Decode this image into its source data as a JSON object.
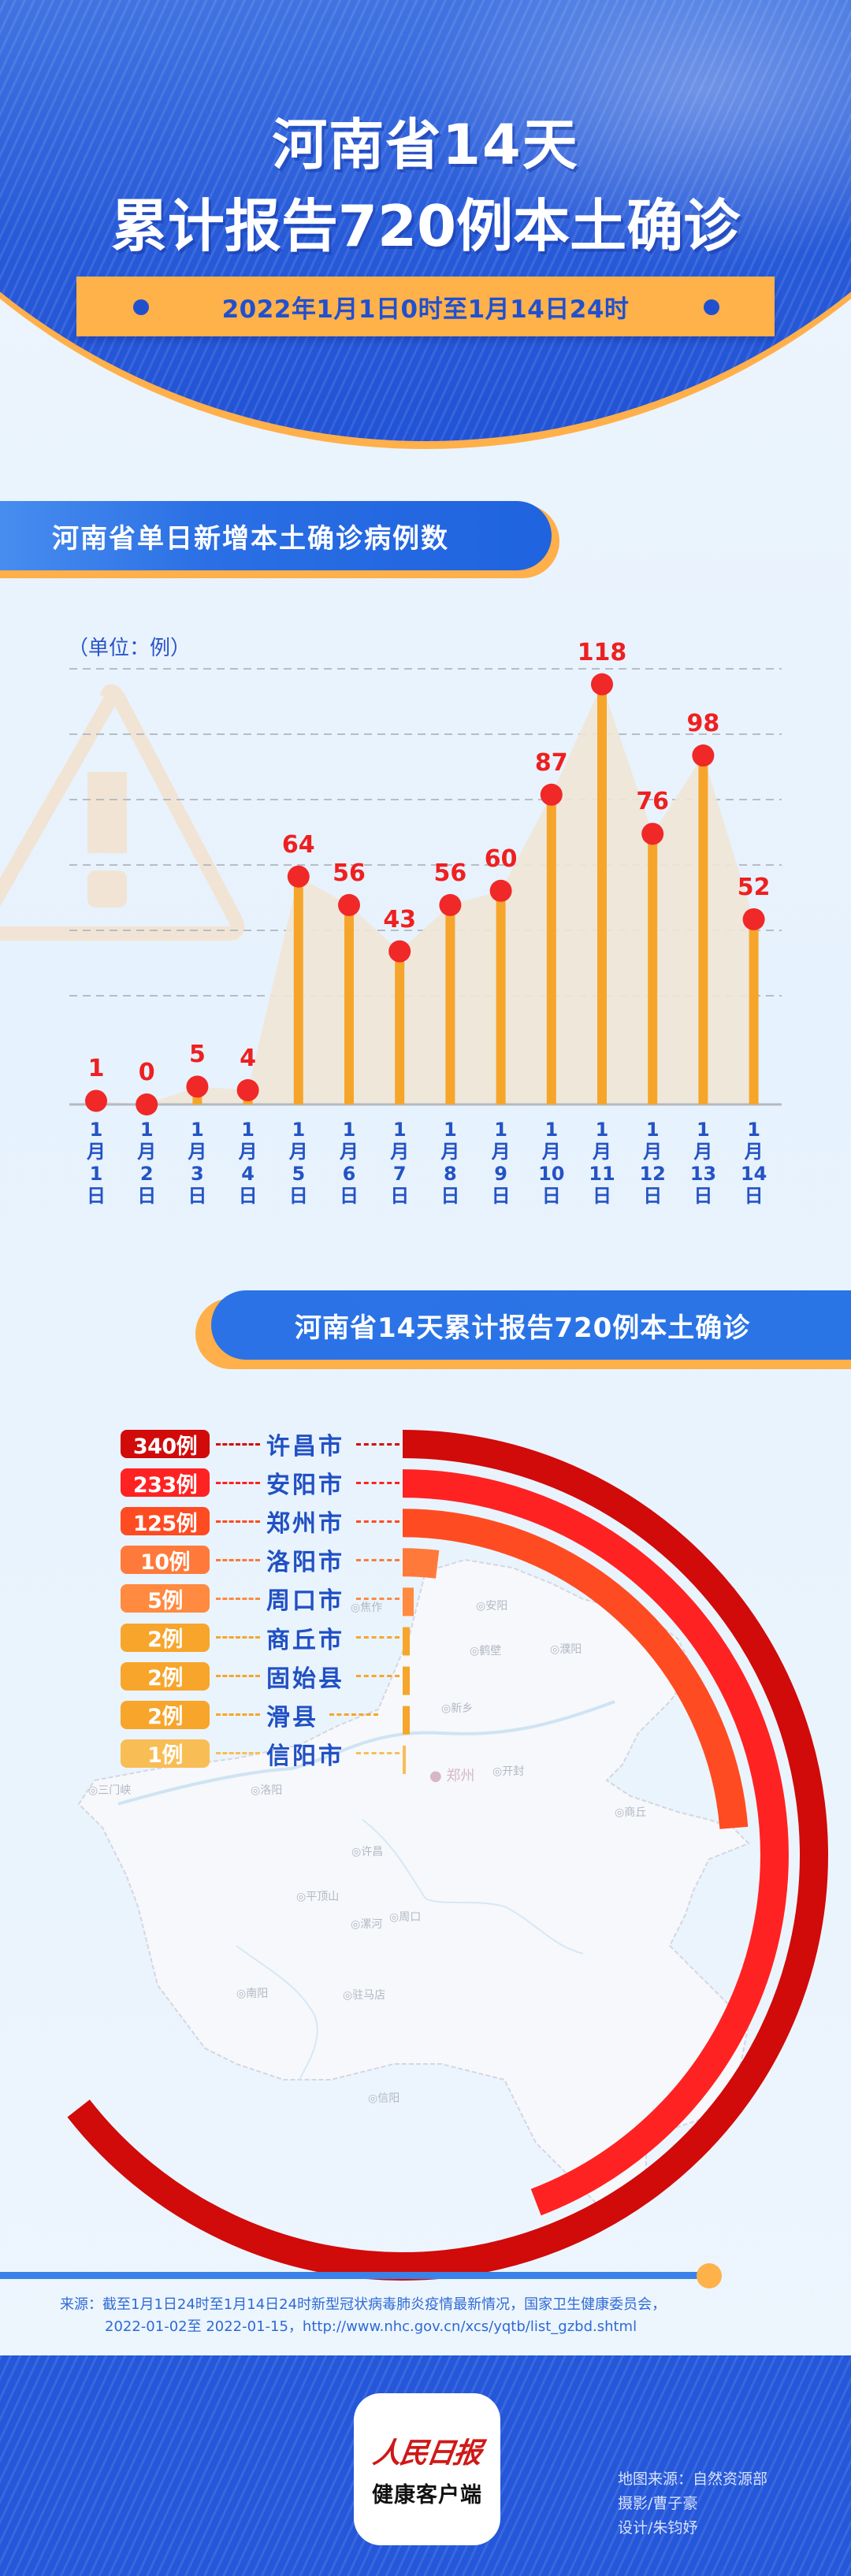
{
  "header": {
    "title_line1": "河南省14天",
    "title_line2": "累计报告720例本土确诊",
    "date_range": "2022年1月1日0时至1月14日24时"
  },
  "section_daily": {
    "title": "河南省单日新增本土确诊病例数",
    "unit": "（单位：例）"
  },
  "section_total": {
    "title": "河南省14天累计报告720例本土确诊"
  },
  "chart_data": [
    {
      "type": "bar",
      "title": "河南省单日新增本土确诊病例数",
      "ylabel": "（单位：例）",
      "xlabel": "",
      "categories": [
        "1月1日",
        "1月2日",
        "1月3日",
        "1月4日",
        "1月5日",
        "1月6日",
        "1月7日",
        "1月8日",
        "1月9日",
        "1月10日",
        "1月11日",
        "1月12日",
        "1月13日",
        "1月14日"
      ],
      "x_labels_stacked": [
        [
          "1",
          "月",
          "1",
          "日"
        ],
        [
          "1",
          "月",
          "2",
          "日"
        ],
        [
          "1",
          "月",
          "3",
          "日"
        ],
        [
          "1",
          "月",
          "4",
          "日"
        ],
        [
          "1",
          "月",
          "5",
          "日"
        ],
        [
          "1",
          "月",
          "6",
          "日"
        ],
        [
          "1",
          "月",
          "7",
          "日"
        ],
        [
          "1",
          "月",
          "8",
          "日"
        ],
        [
          "1",
          "月",
          "9",
          "日"
        ],
        [
          "1",
          "月",
          "10",
          "日"
        ],
        [
          "1",
          "月",
          "11",
          "日"
        ],
        [
          "1",
          "月",
          "12",
          "日"
        ],
        [
          "1",
          "月",
          "13",
          "日"
        ],
        [
          "1",
          "月",
          "14",
          "日"
        ]
      ],
      "values": [
        1,
        0,
        5,
        4,
        64,
        56,
        43,
        56,
        60,
        87,
        118,
        76,
        98,
        52
      ],
      "ylim": [
        0,
        130
      ],
      "grid": true,
      "style": "lollipop with shaded area",
      "colors": {
        "stem": "#f6a52b",
        "dot": "#f02828",
        "area": "#efe6d6",
        "label": "#ee2020"
      }
    },
    {
      "type": "bar",
      "subtype": "radial",
      "title": "河南省14天累计报告720例本土确诊",
      "categories": [
        "许昌市",
        "安阳市",
        "郑州市",
        "洛阳市",
        "周口市",
        "商丘市",
        "固始县",
        "滑县",
        "信阳市"
      ],
      "values": [
        340,
        233,
        125,
        10,
        5,
        2,
        2,
        2,
        1
      ],
      "value_labels": [
        "340例",
        "233例",
        "125例",
        "10例",
        "5例",
        "2例",
        "2例",
        "2例",
        "1例"
      ],
      "colors": [
        "#d10a0a",
        "#ff2222",
        "#ff4b22",
        "#ff7a3a",
        "#ff8a40",
        "#f7a52b",
        "#f7a52b",
        "#f7a52b",
        "#f9bd55"
      ]
    }
  ],
  "map_labels": [
    "安阳",
    "鹤壁",
    "濮阳",
    "焦作",
    "新乡",
    "郑州",
    "开封",
    "三门峡",
    "洛阳",
    "商丘",
    "许昌",
    "平顶山",
    "漯河",
    "周口",
    "南阳",
    "驻马店",
    "信阳"
  ],
  "footer": {
    "source_label": "来源：",
    "source_line1": "截至1月1日24时至1月14日24时新型冠状病毒肺炎疫情最新情况，国家卫生健康委员会，",
    "source_line2": "2022-01-02至 2022-01-15，http://www.nhc.gov.cn/xcs/yqtb/list_gzbd.shtml",
    "logo_top": "人民日报",
    "logo_bottom": "健康客户端",
    "credits": [
      "地图来源：自然资源部",
      "摄影/曹子豪",
      "设计/朱钧妤"
    ]
  }
}
